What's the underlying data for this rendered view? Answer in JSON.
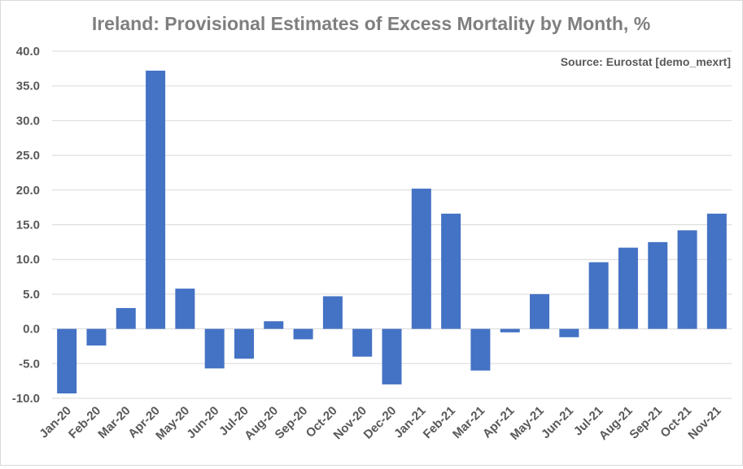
{
  "chart_data": {
    "type": "bar",
    "title": "Ireland: Provisional Estimates of Excess Mortality by Month, %",
    "annotation": "Source: Eurostat [demo_mexrt]",
    "xlabel": "",
    "ylabel": "",
    "ylim": [
      -10,
      40
    ],
    "yticks": [
      "-10.0",
      "-5.0",
      "0.0",
      "5.0",
      "10.0",
      "15.0",
      "20.0",
      "25.0",
      "30.0",
      "35.0",
      "40.0"
    ],
    "grid": true,
    "legend": "none",
    "bar_color": "#4472c4",
    "categories": [
      "Jan-20",
      "Feb-20",
      "Mar-20",
      "Apr-20",
      "May-20",
      "Jun-20",
      "Jul-20",
      "Aug-20",
      "Sep-20",
      "Oct-20",
      "Nov-20",
      "Dec-20",
      "Jan-21",
      "Feb-21",
      "Mar-21",
      "Apr-21",
      "May-21",
      "Jun-21",
      "Jul-21",
      "Aug-21",
      "Sep-21",
      "Oct-21",
      "Nov-21"
    ],
    "values": [
      -9.3,
      -2.4,
      3.0,
      37.2,
      5.8,
      -5.7,
      -4.3,
      1.1,
      -1.5,
      4.7,
      -4.0,
      -8.0,
      20.2,
      16.6,
      -6.0,
      -0.5,
      5.0,
      -1.2,
      9.6,
      11.7,
      12.5,
      14.2,
      16.6
    ]
  }
}
